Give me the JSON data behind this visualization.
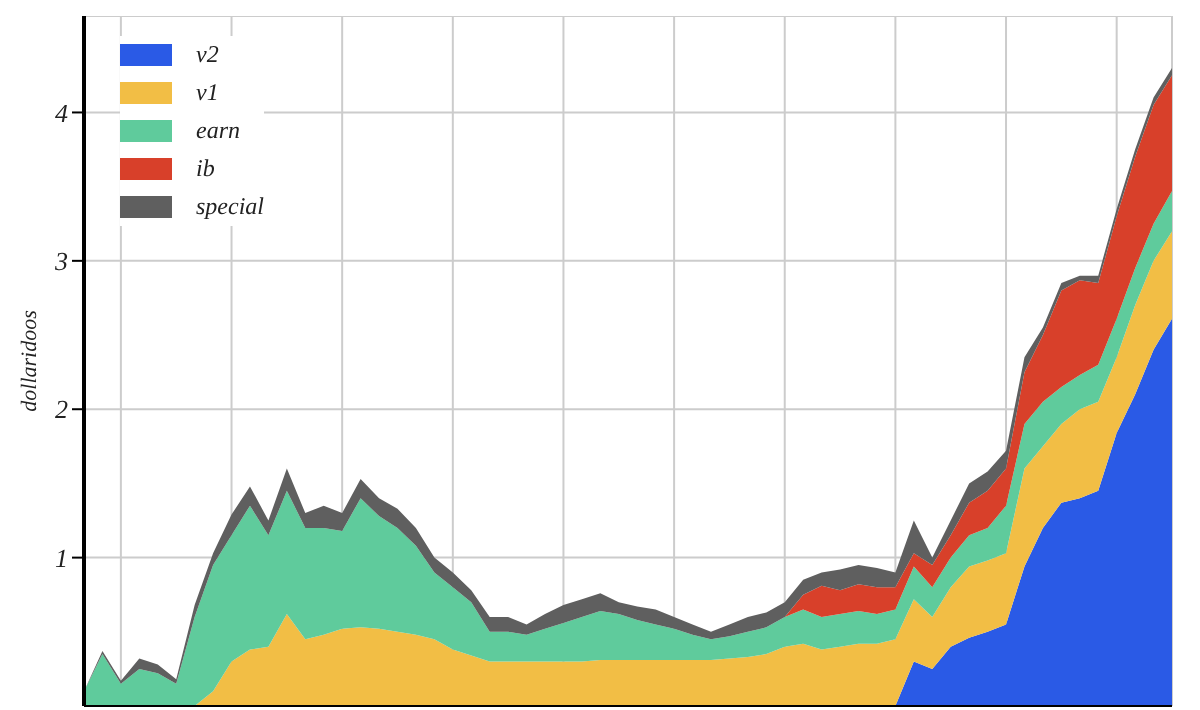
{
  "chart_data": {
    "type": "area",
    "stacked": true,
    "ylabel": "dollaridoos",
    "ylim": [
      0,
      4.65
    ],
    "yticks": [
      1,
      2,
      3,
      4
    ],
    "grid": true,
    "legend": "top left",
    "tick_labels": "y",
    "categories": [
      null,
      null,
      null,
      null,
      null,
      null,
      null,
      null,
      null,
      null,
      null,
      null,
      null,
      null,
      null,
      null,
      null,
      null,
      null,
      null,
      null,
      null,
      null,
      null,
      null,
      null,
      null,
      null,
      null,
      null,
      null,
      null,
      null,
      null,
      null,
      null,
      null,
      null,
      null,
      null,
      null,
      null,
      null,
      null,
      null,
      null,
      null,
      null,
      null,
      null,
      null,
      null,
      null,
      null,
      null,
      null,
      null,
      null,
      null,
      null
    ],
    "series": [
      {
        "name": "v2",
        "color": "#2a5ae6",
        "values": [
          0,
          0,
          0,
          0,
          0,
          0,
          0,
          0,
          0,
          0,
          0,
          0,
          0,
          0,
          0,
          0,
          0,
          0,
          0,
          0,
          0,
          0,
          0,
          0,
          0,
          0,
          0,
          0,
          0,
          0,
          0,
          0,
          0,
          0,
          0,
          0,
          0,
          0,
          0,
          0,
          0,
          0,
          0,
          0,
          0,
          0.3,
          0.25,
          0.4,
          0.46,
          0.5,
          0.55,
          0.94,
          1.2,
          1.37,
          1.4,
          1.45,
          1.84,
          2.1,
          2.4,
          2.61
        ]
      },
      {
        "name": "v1",
        "color": "#f2be45",
        "values": [
          0,
          0,
          0,
          0,
          0,
          0,
          0,
          0.1,
          0.3,
          0.38,
          0.4,
          0.62,
          0.45,
          0.48,
          0.52,
          0.53,
          0.52,
          0.5,
          0.48,
          0.45,
          0.38,
          0.34,
          0.3,
          0.3,
          0.3,
          0.3,
          0.3,
          0.3,
          0.31,
          0.31,
          0.31,
          0.31,
          0.31,
          0.31,
          0.31,
          0.32,
          0.33,
          0.35,
          0.4,
          0.42,
          0.38,
          0.4,
          0.42,
          0.42,
          0.45,
          0.42,
          0.35,
          0.4,
          0.48,
          0.48,
          0.48,
          0.66,
          0.55,
          0.53,
          0.6,
          0.6,
          0.51,
          0.6,
          0.6,
          0.59
        ]
      },
      {
        "name": "earn",
        "color": "#5fcb9c",
        "values": [
          0.1,
          0.35,
          0.15,
          0.25,
          0.22,
          0.15,
          0.6,
          0.85,
          0.85,
          0.97,
          0.75,
          0.83,
          0.75,
          0.72,
          0.66,
          0.87,
          0.76,
          0.7,
          0.6,
          0.45,
          0.42,
          0.36,
          0.2,
          0.2,
          0.18,
          0.22,
          0.26,
          0.3,
          0.33,
          0.31,
          0.27,
          0.24,
          0.21,
          0.17,
          0.14,
          0.15,
          0.17,
          0.18,
          0.2,
          0.23,
          0.22,
          0.22,
          0.22,
          0.2,
          0.2,
          0.22,
          0.2,
          0.2,
          0.21,
          0.22,
          0.32,
          0.3,
          0.3,
          0.25,
          0.23,
          0.25,
          0.26,
          0.25,
          0.25,
          0.27
        ]
      },
      {
        "name": "ib",
        "color": "#d8402a",
        "values": [
          0,
          0,
          0,
          0,
          0,
          0,
          0,
          0,
          0,
          0,
          0,
          0,
          0,
          0,
          0,
          0,
          0,
          0,
          0,
          0,
          0,
          0,
          0,
          0,
          0,
          0,
          0,
          0,
          0,
          0,
          0,
          0,
          0,
          0,
          0,
          0,
          0,
          0,
          0,
          0.1,
          0.21,
          0.16,
          0.18,
          0.18,
          0.15,
          0.09,
          0.15,
          0.15,
          0.22,
          0.25,
          0.25,
          0.35,
          0.45,
          0.65,
          0.64,
          0.55,
          0.69,
          0.75,
          0.8,
          0.78
        ]
      },
      {
        "name": "special",
        "color": "#5f5f5f",
        "values": [
          0,
          0.02,
          0.02,
          0.07,
          0.06,
          0.03,
          0.08,
          0.08,
          0.14,
          0.13,
          0.1,
          0.15,
          0.1,
          0.15,
          0.12,
          0.13,
          0.12,
          0.13,
          0.12,
          0.1,
          0.1,
          0.08,
          0.1,
          0.1,
          0.07,
          0.1,
          0.12,
          0.12,
          0.12,
          0.08,
          0.09,
          0.1,
          0.08,
          0.07,
          0.05,
          0.08,
          0.1,
          0.1,
          0.1,
          0.1,
          0.09,
          0.14,
          0.13,
          0.13,
          0.1,
          0.22,
          0.05,
          0.1,
          0.13,
          0.13,
          0.12,
          0.1,
          0.05,
          0.05,
          0.03,
          0.05,
          0.05,
          0.05,
          0.05,
          0.05
        ]
      }
    ]
  }
}
